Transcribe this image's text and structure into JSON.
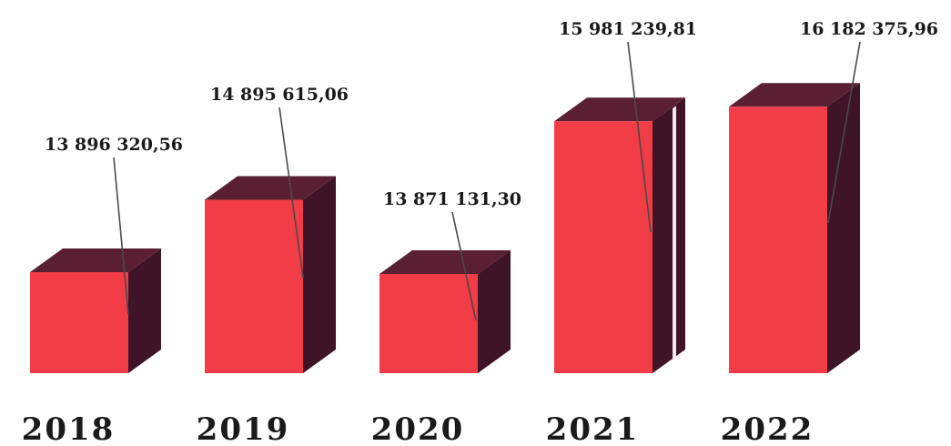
{
  "chart_data": {
    "type": "bar",
    "categories": [
      "2018",
      "2019",
      "2020",
      "2021",
      "2022"
    ],
    "values": [
      13896320.56,
      14895615.06,
      13871131.3,
      15981239.81,
      16182375.96
    ],
    "data_labels": [
      "13 896 320,56",
      "14 895 615,06",
      "13 871 131,30",
      "15 981 239,81",
      "16 182 375,96"
    ],
    "title": "",
    "xlabel": "",
    "ylabel": "",
    "ylim": [
      12500000,
      16500000
    ],
    "grid": false,
    "legend": "none",
    "style": "3d-column"
  },
  "colors": {
    "bar_front": "#f23c46",
    "bar_top": "#5a1f33",
    "bar_side": "#3f1426",
    "leader_line": "#4a4a4a",
    "text": "#1a1a1a"
  }
}
